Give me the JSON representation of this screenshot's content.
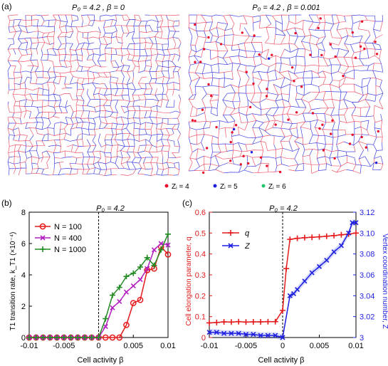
{
  "panel_a": {
    "label": "(a)",
    "left_title": "P₀ = 4.2 , β = 0",
    "right_title": "P₀ = 4.2 , β = 0.001",
    "legend": [
      {
        "label": "Zᵢ = 4",
        "color": "#e8112d"
      },
      {
        "label": "Zᵢ = 5",
        "color": "#1f1fe0"
      },
      {
        "label": "Zᵢ = 6",
        "color": "#22c46a"
      }
    ],
    "mesh_color_red": "#e8112d",
    "mesh_color_blue": "#2222dd"
  },
  "chart_data": [
    {
      "type": "line",
      "panel_label": "(b)",
      "title": "P₀ = 4.2",
      "xlabel": "Cell activity β",
      "ylabel": "T1 transition rate, k_T1 (×10⁻⁴)",
      "xlim": [
        -0.01,
        0.01
      ],
      "ylim": [
        0,
        8
      ],
      "xticks": [
        "-0.01",
        "-0.005",
        "0",
        "0.005",
        "0.01"
      ],
      "yticks": [
        "0",
        "2",
        "4",
        "6",
        "8"
      ],
      "vline_x": 0,
      "legend_position": "top-left",
      "series": [
        {
          "name": "N = 100",
          "color": "#e41a1c",
          "marker": "circle",
          "x": [
            -0.01,
            -0.009,
            -0.008,
            -0.007,
            -0.006,
            -0.005,
            -0.004,
            -0.003,
            -0.002,
            -0.001,
            0,
            0.001,
            0.002,
            0.003,
            0.004,
            0.005,
            0.006,
            0.007,
            0.008,
            0.009,
            0.01
          ],
          "y": [
            0,
            0,
            0,
            0,
            0,
            0,
            0,
            0,
            0,
            0,
            0,
            0,
            0,
            0,
            0.8,
            2.2,
            2.4,
            4.3,
            4.4,
            5.8,
            5.3
          ]
        },
        {
          "name": "N = 400",
          "color": "#b21fc0",
          "marker": "x",
          "x": [
            -0.01,
            -0.009,
            -0.008,
            -0.007,
            -0.006,
            -0.005,
            -0.004,
            -0.003,
            -0.002,
            -0.001,
            0,
            0.001,
            0.002,
            0.003,
            0.004,
            0.005,
            0.006,
            0.007,
            0.008,
            0.009,
            0.01
          ],
          "y": [
            0,
            0,
            0,
            0,
            0,
            0,
            0,
            0,
            0,
            0,
            0,
            0.7,
            1.9,
            2.3,
            2.9,
            3.3,
            3.7,
            4.4,
            5.6,
            6.0,
            5.9
          ]
        },
        {
          "name": "N = 1000",
          "color": "#238b23",
          "marker": "plus",
          "x": [
            -0.01,
            -0.009,
            -0.008,
            -0.007,
            -0.006,
            -0.005,
            -0.004,
            -0.003,
            -0.002,
            -0.001,
            0,
            0.001,
            0.002,
            0.003,
            0.004,
            0.005,
            0.006,
            0.007,
            0.008,
            0.009,
            0.01
          ],
          "y": [
            0,
            0,
            0,
            0,
            0,
            0,
            0,
            0,
            0,
            0,
            0,
            1.2,
            2.7,
            3.2,
            3.9,
            4.1,
            4.5,
            5.1,
            4.6,
            5.6,
            6.6
          ]
        }
      ]
    },
    {
      "type": "line",
      "panel_label": "(c)",
      "title": "P₀ = 4.2",
      "xlabel": "Cell activity β",
      "ylabel_left": "Cell elongation parameter, q",
      "ylabel_right": "Vertex coordination number, Z",
      "xlim": [
        -0.01,
        0.01
      ],
      "ylim_left": [
        0,
        0.6
      ],
      "ylim_right": [
        3.0,
        3.12
      ],
      "xticks": [
        "-0.01",
        "-0.005",
        "0",
        "0.005",
        "0.01"
      ],
      "yticks_left": [
        "0",
        "0.1",
        "0.2",
        "0.3",
        "0.4",
        "0.5",
        "0.6"
      ],
      "yticks_right": [
        "3",
        "3.02",
        "3.04",
        "3.06",
        "3.08",
        "3.10",
        "3.12"
      ],
      "vline_x": 0,
      "legend_position": "upper-left",
      "series": [
        {
          "name": "q",
          "axis": "left",
          "color": "#e41a1c",
          "marker": "plus",
          "x": [
            -0.01,
            -0.009,
            -0.008,
            -0.007,
            -0.006,
            -0.005,
            -0.004,
            -0.003,
            -0.002,
            -0.001,
            0,
            0.0005,
            0.001,
            0.002,
            0.003,
            0.004,
            0.005,
            0.006,
            0.007,
            0.008,
            0.009,
            0.01
          ],
          "y": [
            0.07,
            0.072,
            0.075,
            0.074,
            0.076,
            0.074,
            0.075,
            0.075,
            0.076,
            0.076,
            0.13,
            0.33,
            0.47,
            0.475,
            0.478,
            0.48,
            0.482,
            0.485,
            0.488,
            0.492,
            0.495,
            0.5
          ]
        },
        {
          "name": "Z",
          "axis": "right",
          "color": "#1f1fe0",
          "marker": "x",
          "x": [
            -0.01,
            -0.009,
            -0.008,
            -0.007,
            -0.006,
            -0.005,
            -0.004,
            -0.003,
            -0.002,
            -0.001,
            0,
            0.001,
            0.0015,
            0.002,
            0.003,
            0.004,
            0.005,
            0.006,
            0.007,
            0.008,
            0.009,
            0.0095,
            0.01
          ],
          "y": [
            3.005,
            3.005,
            3.004,
            3.004,
            3.004,
            3.003,
            3.003,
            3.002,
            3.002,
            3.002,
            3.0,
            3.04,
            3.042,
            3.046,
            3.054,
            3.062,
            3.068,
            3.074,
            3.082,
            3.088,
            3.1,
            3.11,
            3.11
          ]
        }
      ]
    }
  ]
}
